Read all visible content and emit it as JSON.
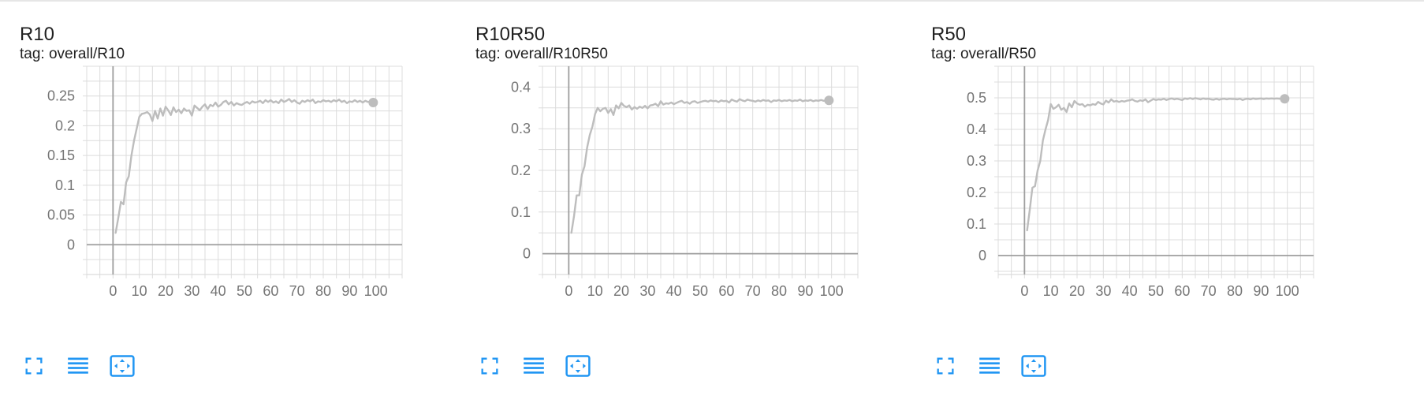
{
  "colors": {
    "line": "#bdbdbd",
    "grid": "#dcdcdc",
    "axis": "#9e9e9e",
    "icon": "#2196f3"
  },
  "toolbar": {
    "icons": [
      "fullscreen-icon",
      "toggle-y-log-icon",
      "fit-domain-icon"
    ]
  },
  "chart_data": [
    {
      "type": "line",
      "title": "R10",
      "tag": "tag: overall/R10",
      "xlim": [
        -10,
        110
      ],
      "ylim": [
        -0.05,
        0.3
      ],
      "xticks": [
        0,
        10,
        20,
        30,
        40,
        50,
        60,
        70,
        80,
        90,
        100
      ],
      "xtick_labels": [
        "0",
        "10",
        "20",
        "30",
        "40",
        "50",
        "60",
        "70",
        "80",
        "90",
        "100"
      ],
      "yticks": [
        0,
        0.05,
        0.1,
        0.15,
        0.2,
        0.25
      ],
      "ytick_labels": [
        "0",
        "0.05",
        "0.1",
        "0.15",
        "0.2",
        "0.25"
      ],
      "grid": true,
      "series": [
        {
          "x": [
            1,
            2,
            3,
            4,
            5,
            6,
            7,
            8,
            9,
            10,
            11,
            12,
            13,
            14,
            15,
            16,
            17,
            18,
            19,
            20,
            21,
            22,
            23,
            24,
            25,
            26,
            27,
            28,
            29,
            30,
            31,
            32,
            33,
            34,
            35,
            36,
            37,
            38,
            39,
            40,
            41,
            42,
            43,
            44,
            45,
            46,
            47,
            48,
            49,
            50,
            51,
            52,
            53,
            54,
            55,
            56,
            57,
            58,
            59,
            60,
            61,
            62,
            63,
            64,
            65,
            66,
            67,
            68,
            69,
            70,
            71,
            72,
            73,
            74,
            75,
            76,
            77,
            78,
            79,
            80,
            81,
            82,
            83,
            84,
            85,
            86,
            87,
            88,
            89,
            90,
            91,
            92,
            93,
            94,
            95,
            96,
            97,
            98,
            99
          ],
          "y": [
            0.02,
            0.045,
            0.072,
            0.068,
            0.105,
            0.115,
            0.15,
            0.175,
            0.195,
            0.215,
            0.22,
            0.221,
            0.223,
            0.219,
            0.208,
            0.225,
            0.212,
            0.229,
            0.217,
            0.232,
            0.226,
            0.218,
            0.231,
            0.223,
            0.227,
            0.221,
            0.229,
            0.225,
            0.226,
            0.217,
            0.234,
            0.23,
            0.226,
            0.232,
            0.236,
            0.228,
            0.235,
            0.233,
            0.239,
            0.232,
            0.235,
            0.24,
            0.242,
            0.236,
            0.24,
            0.234,
            0.238,
            0.236,
            0.235,
            0.238,
            0.24,
            0.237,
            0.241,
            0.239,
            0.24,
            0.242,
            0.238,
            0.243,
            0.24,
            0.243,
            0.239,
            0.241,
            0.238,
            0.244,
            0.24,
            0.242,
            0.245,
            0.24,
            0.243,
            0.239,
            0.237,
            0.242,
            0.24,
            0.243,
            0.241,
            0.244,
            0.238,
            0.241,
            0.24,
            0.243,
            0.241,
            0.242,
            0.24,
            0.243,
            0.241,
            0.244,
            0.24,
            0.242,
            0.238,
            0.241,
            0.24,
            0.243,
            0.24,
            0.242,
            0.239,
            0.242,
            0.24,
            0.241,
            0.239
          ]
        }
      ]
    },
    {
      "type": "line",
      "title": "R10R50",
      "tag": "tag: overall/R10R50",
      "xlim": [
        -10,
        110
      ],
      "ylim": [
        -0.05,
        0.45
      ],
      "xticks": [
        0,
        10,
        20,
        30,
        40,
        50,
        60,
        70,
        80,
        90,
        100
      ],
      "xtick_labels": [
        "0",
        "10",
        "20",
        "30",
        "40",
        "50",
        "60",
        "70",
        "80",
        "90",
        "100"
      ],
      "yticks": [
        0,
        0.1,
        0.2,
        0.3,
        0.4
      ],
      "ytick_labels": [
        "0",
        "0.1",
        "0.2",
        "0.3",
        "0.4"
      ],
      "grid": true,
      "series": [
        {
          "x": [
            1,
            2,
            3,
            4,
            5,
            6,
            7,
            8,
            9,
            10,
            11,
            12,
            13,
            14,
            15,
            16,
            17,
            18,
            19,
            20,
            21,
            22,
            23,
            24,
            25,
            26,
            27,
            28,
            29,
            30,
            31,
            32,
            33,
            34,
            35,
            36,
            37,
            38,
            39,
            40,
            41,
            42,
            43,
            44,
            45,
            46,
            47,
            48,
            49,
            50,
            51,
            52,
            53,
            54,
            55,
            56,
            57,
            58,
            59,
            60,
            61,
            62,
            63,
            64,
            65,
            66,
            67,
            68,
            69,
            70,
            71,
            72,
            73,
            74,
            75,
            76,
            77,
            78,
            79,
            80,
            81,
            82,
            83,
            84,
            85,
            86,
            87,
            88,
            89,
            90,
            91,
            92,
            93,
            94,
            95,
            96,
            97,
            98,
            99
          ],
          "y": [
            0.05,
            0.09,
            0.14,
            0.14,
            0.19,
            0.21,
            0.255,
            0.285,
            0.305,
            0.335,
            0.35,
            0.342,
            0.348,
            0.35,
            0.338,
            0.347,
            0.333,
            0.356,
            0.349,
            0.362,
            0.355,
            0.352,
            0.356,
            0.346,
            0.352,
            0.348,
            0.353,
            0.35,
            0.355,
            0.349,
            0.356,
            0.357,
            0.36,
            0.354,
            0.366,
            0.358,
            0.361,
            0.36,
            0.363,
            0.359,
            0.362,
            0.365,
            0.367,
            0.362,
            0.364,
            0.36,
            0.365,
            0.366,
            0.362,
            0.364,
            0.366,
            0.367,
            0.365,
            0.368,
            0.366,
            0.367,
            0.364,
            0.368,
            0.366,
            0.367,
            0.363,
            0.37,
            0.367,
            0.365,
            0.371,
            0.368,
            0.366,
            0.37,
            0.368,
            0.367,
            0.365,
            0.368,
            0.366,
            0.369,
            0.367,
            0.368,
            0.364,
            0.368,
            0.367,
            0.369,
            0.366,
            0.368,
            0.367,
            0.369,
            0.366,
            0.368,
            0.367,
            0.37,
            0.366,
            0.368,
            0.367,
            0.369,
            0.366,
            0.368,
            0.367,
            0.369,
            0.367,
            0.368,
            0.368
          ]
        }
      ]
    },
    {
      "type": "line",
      "title": "R50",
      "tag": "tag: overall/R50",
      "xlim": [
        -10,
        110
      ],
      "ylim": [
        -0.06,
        0.6
      ],
      "xticks": [
        0,
        10,
        20,
        30,
        40,
        50,
        60,
        70,
        80,
        90,
        100
      ],
      "xtick_labels": [
        "0",
        "10",
        "20",
        "30",
        "40",
        "50",
        "60",
        "70",
        "80",
        "90",
        "100"
      ],
      "yticks": [
        0,
        0.1,
        0.2,
        0.3,
        0.4,
        0.5
      ],
      "ytick_labels": [
        "0",
        "0.1",
        "0.2",
        "0.3",
        "0.4",
        "0.5"
      ],
      "grid": true,
      "series": [
        {
          "x": [
            1,
            2,
            3,
            4,
            5,
            6,
            7,
            8,
            9,
            10,
            11,
            12,
            13,
            14,
            15,
            16,
            17,
            18,
            19,
            20,
            21,
            22,
            23,
            24,
            25,
            26,
            27,
            28,
            29,
            30,
            31,
            32,
            33,
            34,
            35,
            36,
            37,
            38,
            39,
            40,
            41,
            42,
            43,
            44,
            45,
            46,
            47,
            48,
            49,
            50,
            51,
            52,
            53,
            54,
            55,
            56,
            57,
            58,
            59,
            60,
            61,
            62,
            63,
            64,
            65,
            66,
            67,
            68,
            69,
            70,
            71,
            72,
            73,
            74,
            75,
            76,
            77,
            78,
            79,
            80,
            81,
            82,
            83,
            84,
            85,
            86,
            87,
            88,
            89,
            90,
            91,
            92,
            93,
            94,
            95,
            96,
            97,
            98,
            99
          ],
          "y": [
            0.08,
            0.145,
            0.215,
            0.22,
            0.27,
            0.3,
            0.365,
            0.4,
            0.43,
            0.48,
            0.465,
            0.47,
            0.478,
            0.462,
            0.468,
            0.455,
            0.482,
            0.47,
            0.49,
            0.482,
            0.478,
            0.48,
            0.472,
            0.478,
            0.476,
            0.48,
            0.478,
            0.487,
            0.482,
            0.479,
            0.491,
            0.485,
            0.495,
            0.488,
            0.49,
            0.487,
            0.49,
            0.488,
            0.491,
            0.492,
            0.495,
            0.49,
            0.488,
            0.492,
            0.49,
            0.495,
            0.486,
            0.491,
            0.496,
            0.493,
            0.495,
            0.494,
            0.497,
            0.493,
            0.496,
            0.498,
            0.495,
            0.497,
            0.495,
            0.493,
            0.498,
            0.496,
            0.499,
            0.496,
            0.499,
            0.497,
            0.495,
            0.498,
            0.496,
            0.497,
            0.495,
            0.494,
            0.497,
            0.494,
            0.496,
            0.497,
            0.495,
            0.497,
            0.496,
            0.496,
            0.495,
            0.497,
            0.493,
            0.496,
            0.497,
            0.495,
            0.498,
            0.496,
            0.497,
            0.498,
            0.496,
            0.498,
            0.497,
            0.498,
            0.497,
            0.498,
            0.497,
            0.497,
            0.497
          ]
        }
      ]
    }
  ]
}
